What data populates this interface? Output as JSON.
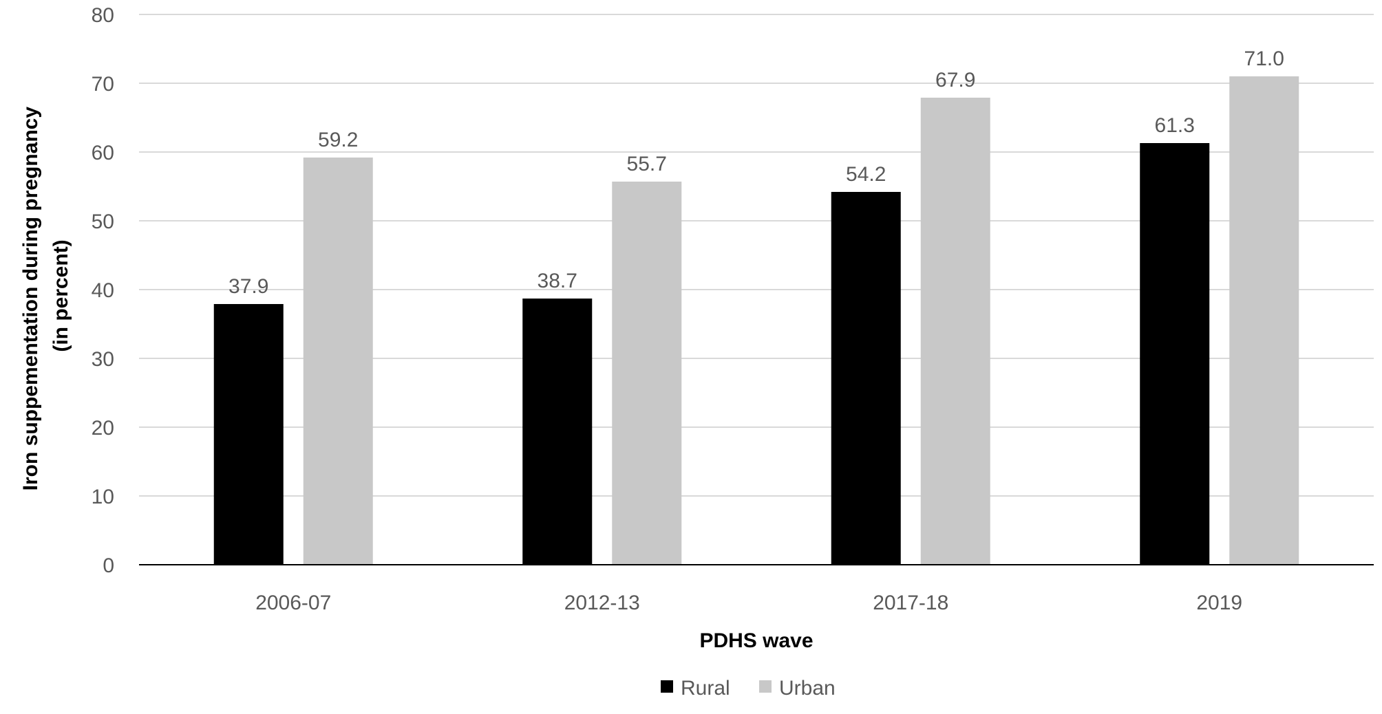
{
  "chart_data": {
    "type": "bar",
    "categories": [
      "2006-07",
      "2012-13",
      "2017-18",
      "2019"
    ],
    "series": [
      {
        "name": "Rural",
        "color": "#000000",
        "values": [
          37.9,
          38.7,
          54.2,
          61.3
        ],
        "labels": [
          "37.9",
          "38.7",
          "54.2",
          "61.3"
        ]
      },
      {
        "name": "Urban",
        "color": "#c8c8c8",
        "values": [
          59.2,
          55.7,
          67.9,
          71.0
        ],
        "labels": [
          "59.2",
          "55.7",
          "67.9",
          "71.0"
        ]
      }
    ],
    "xlabel": "PDHS wave",
    "ylabel_lines": [
      "Iron suppementation  during pregnancy",
      "(in percent)"
    ],
    "ylim": [
      0,
      80
    ],
    "yticks": [
      0,
      10,
      20,
      30,
      40,
      50,
      60,
      70,
      80
    ],
    "grid": true,
    "legend_position": "bottom-center",
    "gridline_color": "#d9d9d9",
    "axis_color": "#000000"
  }
}
